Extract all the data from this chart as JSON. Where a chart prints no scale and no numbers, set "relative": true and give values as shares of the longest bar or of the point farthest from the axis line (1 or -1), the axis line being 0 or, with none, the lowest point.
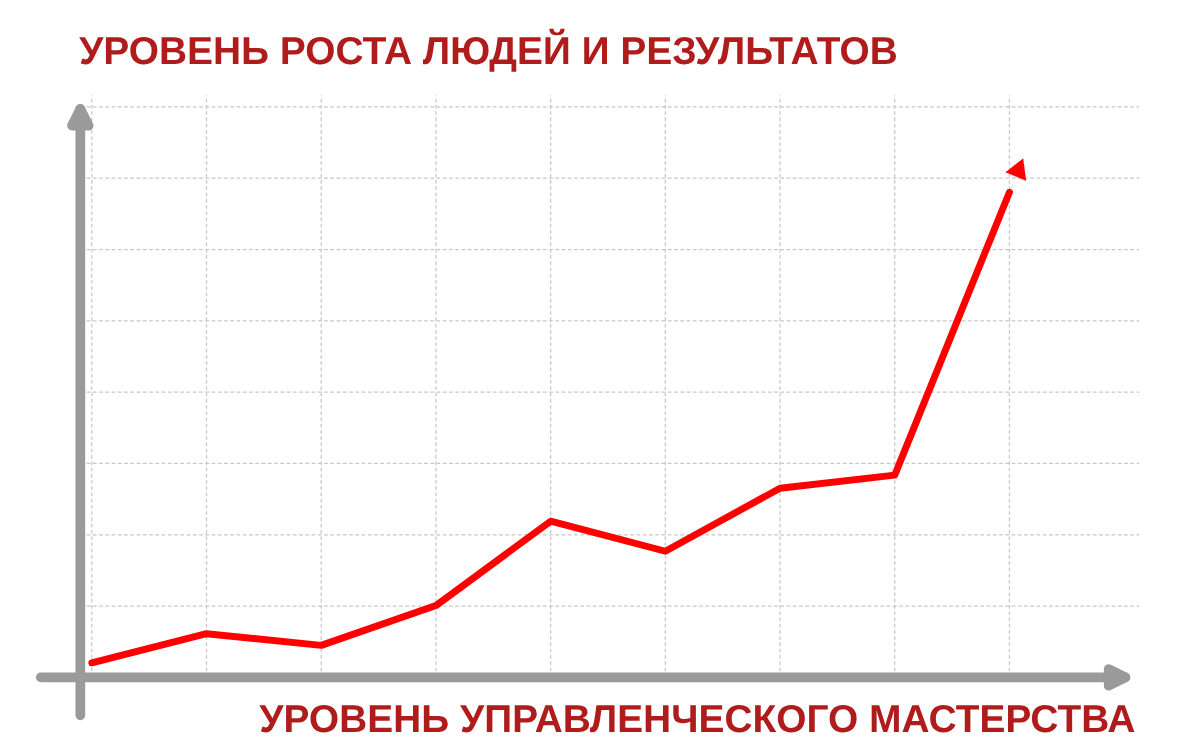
{
  "chart_data": {
    "type": "line",
    "relative": true,
    "xlabel": "УРОВЕНЬ УПРАВЛЕНЧЕСКОГО МАСТЕРСТВА",
    "ylabel": "УРОВЕНЬ РОСТА ЛЮДЕЙ И РЕЗУЛЬТАТОВ",
    "categories": [
      null,
      null,
      null,
      null,
      null,
      null,
      null,
      null,
      null
    ],
    "series": [
      {
        "color": "#ff0000",
        "values": [
          0.03,
          0.09,
          0.066,
          0.148,
          0.322,
          0.26,
          0.39,
          0.417,
          1
        ]
      }
    ],
    "grid": true,
    "marker": "none",
    "line_style": "solid"
  }
}
